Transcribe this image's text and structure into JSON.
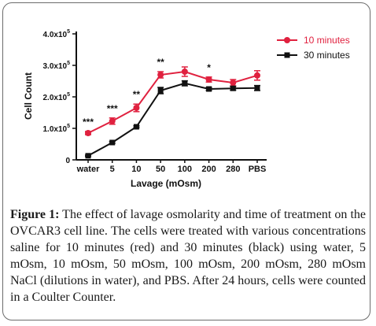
{
  "chart_data": {
    "type": "line",
    "categories": [
      "water",
      "5",
      "10",
      "50",
      "100",
      "200",
      "280",
      "PBS"
    ],
    "ylabel": "Cell Count",
    "xlabel": "Lavage (mOsm)",
    "ylim": [
      0,
      400000
    ],
    "yticks": [
      {
        "value": 0,
        "label": "0"
      },
      {
        "value": 100000,
        "label": "1.0x10",
        "exp": "5"
      },
      {
        "value": 200000,
        "label": "2.0x10",
        "exp": "5"
      },
      {
        "value": 300000,
        "label": "3.0x10",
        "exp": "5"
      },
      {
        "value": 400000,
        "label": "4.0x10",
        "exp": "5"
      }
    ],
    "series": [
      {
        "name": "10 minutes",
        "color": "#e0213f",
        "marker": "circle",
        "values": [
          85000,
          123000,
          165000,
          270000,
          280000,
          255000,
          245000,
          268000
        ],
        "errors": [
          5000,
          10000,
          12000,
          10000,
          15000,
          8000,
          10000,
          15000
        ]
      },
      {
        "name": "30 minutes",
        "color": "#111111",
        "marker": "square",
        "values": [
          13000,
          55000,
          105000,
          220000,
          243000,
          225000,
          227000,
          228000
        ],
        "errors": [
          2000,
          3000,
          3000,
          10000,
          8000,
          5000,
          6000,
          8000
        ]
      }
    ],
    "annotations": [
      {
        "category": "water",
        "text": "***"
      },
      {
        "category": "5",
        "text": "***"
      },
      {
        "category": "10",
        "text": "**"
      },
      {
        "category": "50",
        "text": "**"
      },
      {
        "category": "200",
        "text": "*"
      }
    ],
    "legend": "top-right"
  },
  "caption": {
    "label": "Figure 1:",
    "text": " The effect of lavage osmolarity and time of treatment on the OVCAR3 cell line. The cells were treated with various concentrations saline for 10 minutes (red) and 30 minutes (black) using water, 5 mOsm, 10 mOsm, 50 mOsm, 100 mOsm, 200 mOsm, 280 mOsm NaCl (dilutions in water), and PBS. After 24 hours, cells were counted in a Coulter Counter."
  }
}
